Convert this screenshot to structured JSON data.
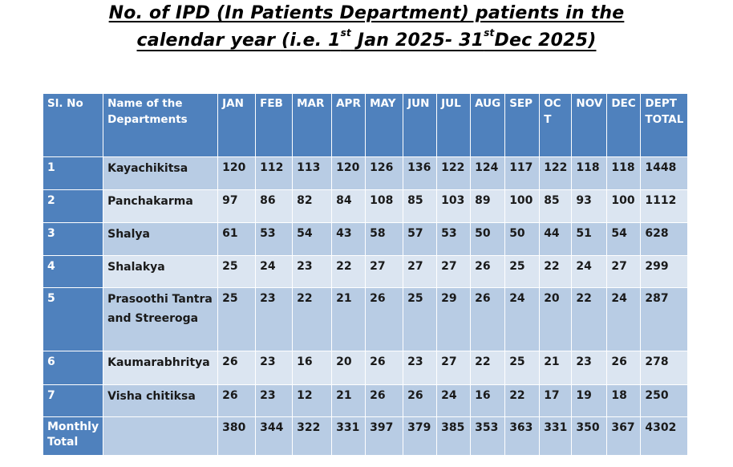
{
  "title_line1": "No. of IPD (In Patients Department) patients in the",
  "title_line2_a": "calendar year (i.e. 1",
  "title_line2_sup1": "st",
  "title_line2_b": " Jan 2025- 31",
  "title_line2_sup2": "st",
  "title_line2_c": "Dec 2025)",
  "headers": [
    "Sl. No",
    "Name of the Departments",
    "JAN",
    "FEB",
    "MAR",
    "APR",
    "MAY",
    "JUN",
    "JUL",
    "AUG",
    "SEP",
    "OC T",
    "NOV",
    "DEC",
    "DEPT TOTAL"
  ],
  "rows": [
    {
      "sl": "1",
      "dept": "Kayachikitsa",
      "values": [
        "120",
        "112",
        "113",
        "120",
        "126",
        "136",
        "122",
        "124",
        "117",
        "122",
        "118",
        "118",
        "1448"
      ]
    },
    {
      "sl": "2",
      "dept": "Panchakarma",
      "values": [
        "97",
        "86",
        "82",
        "84",
        "108",
        "85",
        "103",
        "89",
        "100",
        "85",
        "93",
        "100",
        "1112"
      ]
    },
    {
      "sl": "3",
      "dept": "Shalya",
      "values": [
        "61",
        "53",
        "54",
        "43",
        "58",
        "57",
        "53",
        "50",
        "50",
        "44",
        "51",
        "54",
        "628"
      ]
    },
    {
      "sl": "4",
      "dept": "Shalakya",
      "values": [
        "25",
        "24",
        "23",
        "22",
        "27",
        "27",
        "27",
        "26",
        "25",
        "22",
        "24",
        "27",
        "299"
      ]
    },
    {
      "sl": "5",
      "dept": "Prasoothi Tantra and Streeroga",
      "values": [
        "25",
        "23",
        "22",
        "21",
        "26",
        "25",
        "29",
        "26",
        "24",
        "20",
        "22",
        "24",
        "287"
      ]
    },
    {
      "sl": "6",
      "dept": "Kaumarabhritya",
      "values": [
        "26",
        "23",
        "16",
        "20",
        "26",
        "23",
        "27",
        "22",
        "25",
        "21",
        "23",
        "26",
        "278"
      ]
    },
    {
      "sl": "7",
      "dept": "Visha chitiksa",
      "values": [
        "26",
        "23",
        "12",
        "21",
        "26",
        "26",
        "24",
        "16",
        "22",
        "17",
        "19",
        "18",
        "250"
      ]
    }
  ],
  "total_row": {
    "label": "Monthly Total",
    "dept": "",
    "values": [
      "380",
      "344",
      "322",
      "331",
      "397",
      "379",
      "385",
      "353",
      "363",
      "331",
      "350",
      "367",
      "4302"
    ]
  }
}
